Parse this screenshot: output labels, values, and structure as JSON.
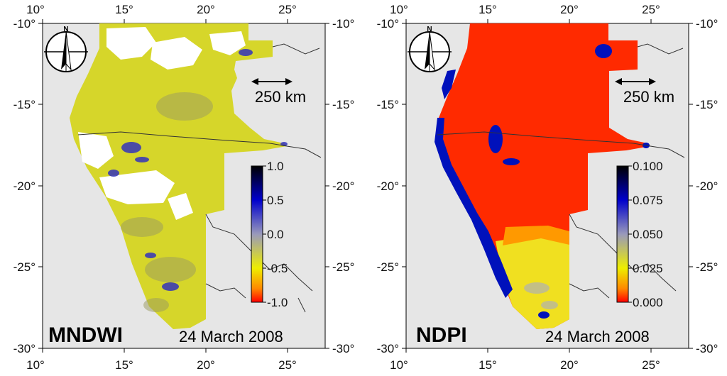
{
  "panels": [
    {
      "id": "mndwi",
      "index_label": "MNDWI",
      "date_label": "24 March 2008",
      "scalebar_label": "250 km",
      "north_label": "N",
      "x_ticks": [
        "10°",
        "15°",
        "20°",
        "25°"
      ],
      "y_ticks": [
        "-10°",
        "-15°",
        "-20°",
        "-25°",
        "-30°"
      ],
      "colorbar": {
        "min": -1.0,
        "max": 1.0,
        "tick_labels": [
          "1.0",
          "0.5",
          "0.0",
          "-0.5",
          "-1.0"
        ],
        "tick_values": [
          1.0,
          0.5,
          0.0,
          -0.5,
          -1.0
        ],
        "colors": [
          "#000000",
          "#0000cc",
          "#9999bb",
          "#eeee00",
          "#ff8800",
          "#ff0000"
        ]
      },
      "fill_color": "#d6d62a",
      "cloud_color": "#ffffff",
      "water_color": "#3333bb"
    },
    {
      "id": "ndpi",
      "index_label": "NDPI",
      "date_label": "24 March 2008",
      "scalebar_label": "250 km",
      "north_label": "N",
      "x_ticks": [
        "10°",
        "15°",
        "20°",
        "25°"
      ],
      "y_ticks": [
        "-10°",
        "-15°",
        "-20°",
        "-25°",
        "-30°"
      ],
      "colorbar": {
        "min": 0.0,
        "max": 0.1,
        "tick_labels": [
          "0.100",
          "0.075",
          "0.050",
          "0.025",
          "0.000"
        ],
        "tick_values": [
          0.1,
          0.075,
          0.05,
          0.025,
          0.0
        ],
        "colors": [
          "#000000",
          "#0000cc",
          "#9999bb",
          "#eeee00",
          "#ff8800",
          "#ff0000"
        ]
      },
      "fill_color": "#ff2a00",
      "water_color": "#0011bb"
    }
  ]
}
